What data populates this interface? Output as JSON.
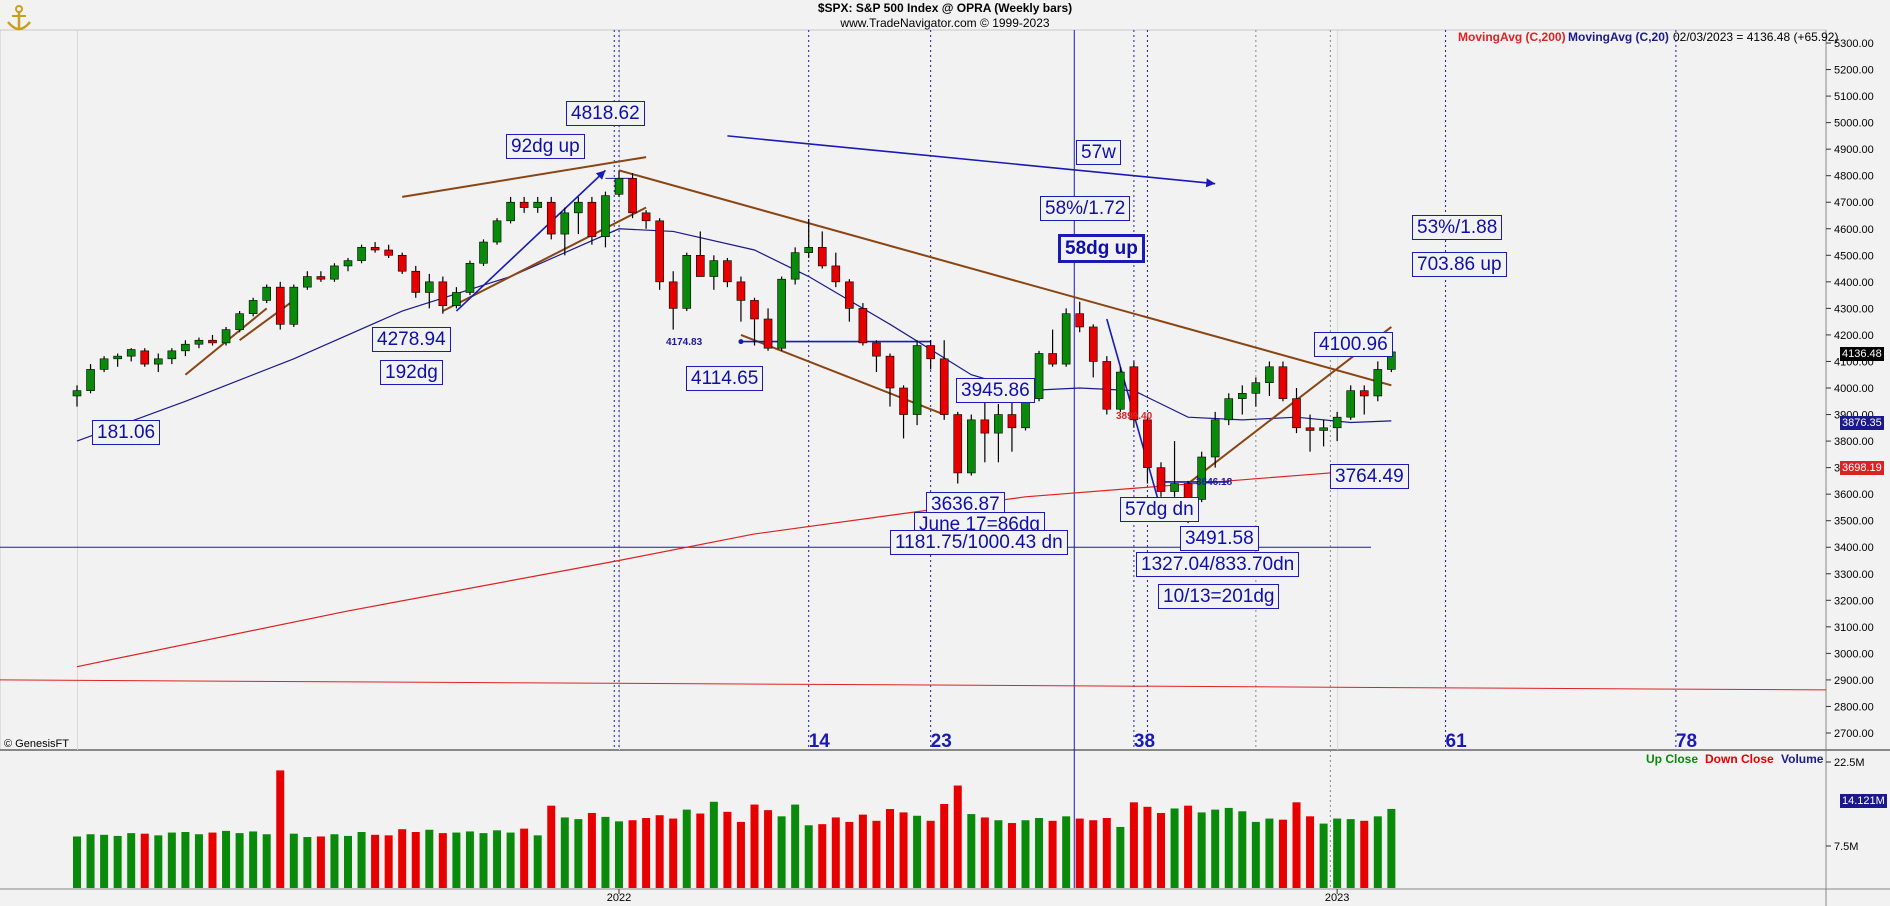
{
  "header": {
    "title": "$SPX:  S&P 500 Index @ OPRA  (Weekly bars)",
    "subtitle": "www.TradeNavigator.com © 1999-2023"
  },
  "legend": {
    "ma200": "MovingAvg (C,200)",
    "ma20": "MovingAvg (C,20)",
    "last_bar": "02/03/2023 = 4136.48 (+65.92)",
    "up_close": "Up Close",
    "down_close": "Down Close",
    "volume": "Volume"
  },
  "copyright": "© GenesisFT",
  "price_tags": {
    "last": "4136.48",
    "ma20": "3876.35",
    "ma200": "3698.19",
    "vol": "14.121M"
  },
  "annotations": {
    "a4818": "4818.62",
    "a92dg": "92dg up",
    "a4278": "4278.94",
    "a192dg": "192dg",
    "a181": "181.06",
    "a4114": "4114.65",
    "a4174": "4174.83",
    "a3945": "3945.86",
    "a3636": "3636.87",
    "june17": "June 17=86dg",
    "a1181": "1181.75/1000.43 dn",
    "a57w": "57w",
    "a58pct": "58%/1.72",
    "a58dg": "58dg up",
    "a3899": "3899.40",
    "a3646": "3646.18",
    "a57dgdn": "57dg dn",
    "a3491": "3491.58",
    "a1327": "1327.04/833.70dn",
    "oct13": "10/13=201dg",
    "a4100": "4100.96",
    "a3764": "3764.49",
    "a53pct": "53%/1.88",
    "a703": "703.86 up"
  },
  "colors": {
    "up": "#0a8a0a",
    "down": "#e60000",
    "annotation": "#1a1ab4",
    "ma200": "#dd2222",
    "ma20": "#1a1a8a",
    "trendline": "#8b4513",
    "background": "#f2f2f2"
  },
  "chart_data": {
    "type": "candlestick",
    "title": "$SPX:  S&P 500 Index @ OPRA  (Weekly bars)",
    "y_axis": {
      "min": 2700,
      "max": 5300,
      "step": 100,
      "ticks": [
        "5300.00",
        "5200.00",
        "5100.00",
        "5000.00",
        "4900.00",
        "4800.00",
        "4700.00",
        "4600.00",
        "4500.00",
        "4400.00",
        "4300.00",
        "4200.00",
        "4100.00",
        "4000.00",
        "3900.00",
        "3800.00",
        "3700.00",
        "3600.00",
        "3500.00",
        "3400.00",
        "3300.00",
        "3200.00",
        "3100.00",
        "3000.00",
        "2900.00",
        "2800.00",
        "2700.00"
      ]
    },
    "volume_axis": {
      "min": 0,
      "max": 22.5,
      "unit": "M",
      "ticks": [
        "22.5M",
        "7.5M"
      ]
    },
    "x_axis": {
      "labels": [
        {
          "bar": 0,
          "text": "2022"
        },
        {
          "bar": 53,
          "text": "2023"
        }
      ]
    },
    "cycle_counts": [
      {
        "bar": 0,
        "text": "",
        "label_shown": false
      },
      {
        "bar": 14,
        "text": "14"
      },
      {
        "bar": 23,
        "text": "23"
      },
      {
        "bar": 38,
        "text": "38"
      },
      {
        "bar": 61,
        "text": "61"
      },
      {
        "bar": 78,
        "text": "78"
      }
    ],
    "bars": [
      {
        "w": -40,
        "o": 3970,
        "h": 4010,
        "l": 3930,
        "c": 3990,
        "v": 9.2
      },
      {
        "w": -39,
        "o": 3990,
        "h": 4090,
        "l": 3980,
        "c": 4070,
        "v": 9.6
      },
      {
        "w": -38,
        "o": 4070,
        "h": 4120,
        "l": 4060,
        "c": 4110,
        "v": 9.5
      },
      {
        "w": -37,
        "o": 4110,
        "h": 4130,
        "l": 4080,
        "c": 4120,
        "v": 9.3
      },
      {
        "w": -36,
        "o": 4120,
        "h": 4150,
        "l": 4100,
        "c": 4145,
        "v": 9.8
      },
      {
        "w": -35,
        "o": 4140,
        "h": 4150,
        "l": 4080,
        "c": 4090,
        "v": 9.7
      },
      {
        "w": -34,
        "o": 4090,
        "h": 4130,
        "l": 4060,
        "c": 4110,
        "v": 9.4
      },
      {
        "w": -33,
        "o": 4110,
        "h": 4150,
        "l": 4090,
        "c": 4140,
        "v": 9.9
      },
      {
        "w": -32,
        "o": 4140,
        "h": 4180,
        "l": 4120,
        "c": 4165,
        "v": 10.0
      },
      {
        "w": -31,
        "o": 4165,
        "h": 4190,
        "l": 4150,
        "c": 4180,
        "v": 9.6
      },
      {
        "w": -30,
        "o": 4180,
        "h": 4200,
        "l": 4160,
        "c": 4170,
        "v": 9.9
      },
      {
        "w": -29,
        "o": 4170,
        "h": 4230,
        "l": 4160,
        "c": 4220,
        "v": 10.2
      },
      {
        "w": -28,
        "o": 4220,
        "h": 4290,
        "l": 4210,
        "c": 4280,
        "v": 9.8
      },
      {
        "w": -27,
        "o": 4280,
        "h": 4340,
        "l": 4270,
        "c": 4330,
        "v": 10.1
      },
      {
        "w": -26,
        "o": 4330,
        "h": 4390,
        "l": 4320,
        "c": 4380,
        "v": 9.6
      },
      {
        "w": -25,
        "o": 4380,
        "h": 4400,
        "l": 4220,
        "c": 4240,
        "v": 21.0
      },
      {
        "w": -24,
        "o": 4240,
        "h": 4390,
        "l": 4230,
        "c": 4380,
        "v": 9.7
      },
      {
        "w": -23,
        "o": 4380,
        "h": 4440,
        "l": 4370,
        "c": 4420,
        "v": 9.1
      },
      {
        "w": -22,
        "o": 4420,
        "h": 4440,
        "l": 4400,
        "c": 4410,
        "v": 9.2
      },
      {
        "w": -21,
        "o": 4410,
        "h": 4470,
        "l": 4400,
        "c": 4460,
        "v": 9.6
      },
      {
        "w": -20,
        "o": 4460,
        "h": 4490,
        "l": 4440,
        "c": 4480,
        "v": 9.3
      },
      {
        "w": -19,
        "o": 4480,
        "h": 4540,
        "l": 4470,
        "c": 4530,
        "v": 10.0
      },
      {
        "w": -18,
        "o": 4530,
        "h": 4550,
        "l": 4510,
        "c": 4520,
        "v": 9.5
      },
      {
        "w": -17,
        "o": 4520,
        "h": 4540,
        "l": 4490,
        "c": 4500,
        "v": 9.4
      },
      {
        "w": -16,
        "o": 4500,
        "h": 4510,
        "l": 4430,
        "c": 4440,
        "v": 10.5
      },
      {
        "w": -15,
        "o": 4440,
        "h": 4460,
        "l": 4340,
        "c": 4360,
        "v": 10.0
      },
      {
        "w": -14,
        "o": 4360,
        "h": 4430,
        "l": 4300,
        "c": 4400,
        "v": 10.4
      },
      {
        "w": -13,
        "o": 4400,
        "h": 4420,
        "l": 4280,
        "c": 4310,
        "v": 9.8
      },
      {
        "w": -12,
        "o": 4310,
        "h": 4380,
        "l": 4300,
        "c": 4360,
        "v": 9.9
      },
      {
        "w": -11,
        "o": 4360,
        "h": 4480,
        "l": 4350,
        "c": 4470,
        "v": 10.1
      },
      {
        "w": -10,
        "o": 4470,
        "h": 4560,
        "l": 4460,
        "c": 4550,
        "v": 9.8
      },
      {
        "w": -9,
        "o": 4550,
        "h": 4640,
        "l": 4540,
        "c": 4630,
        "v": 10.3
      },
      {
        "w": -8,
        "o": 4630,
        "h": 4720,
        "l": 4620,
        "c": 4700,
        "v": 9.9
      },
      {
        "w": -7,
        "o": 4700,
        "h": 4720,
        "l": 4660,
        "c": 4680,
        "v": 10.6
      },
      {
        "w": -6,
        "o": 4680,
        "h": 4720,
        "l": 4660,
        "c": 4700,
        "v": 9.4
      },
      {
        "w": -5,
        "o": 4700,
        "h": 4720,
        "l": 4560,
        "c": 4580,
        "v": 14.7
      },
      {
        "w": -4,
        "o": 4580,
        "h": 4680,
        "l": 4500,
        "c": 4660,
        "v": 12.6
      },
      {
        "w": -3,
        "o": 4660,
        "h": 4720,
        "l": 4580,
        "c": 4700,
        "v": 12.3
      },
      {
        "w": -2,
        "o": 4700,
        "h": 4720,
        "l": 4540,
        "c": 4570,
        "v": 13.4
      },
      {
        "w": -1,
        "o": 4570,
        "h": 4740,
        "l": 4530,
        "c": 4725,
        "v": 12.7
      },
      {
        "w": 0,
        "o": 4730,
        "h": 4818,
        "l": 4720,
        "c": 4790,
        "v": 11.9
      },
      {
        "w": 1,
        "o": 4790,
        "h": 4810,
        "l": 4640,
        "c": 4660,
        "v": 12.1
      },
      {
        "w": 2,
        "o": 4660,
        "h": 4670,
        "l": 4600,
        "c": 4630,
        "v": 12.5
      },
      {
        "w": 3,
        "o": 4630,
        "h": 4640,
        "l": 4370,
        "c": 4400,
        "v": 13.0
      },
      {
        "w": 4,
        "o": 4400,
        "h": 4440,
        "l": 4220,
        "c": 4300,
        "v": 12.4
      },
      {
        "w": 5,
        "o": 4300,
        "h": 4510,
        "l": 4290,
        "c": 4500,
        "v": 14.0
      },
      {
        "w": 6,
        "o": 4500,
        "h": 4590,
        "l": 4440,
        "c": 4420,
        "v": 13.3
      },
      {
        "w": 7,
        "o": 4420,
        "h": 4500,
        "l": 4370,
        "c": 4480,
        "v": 15.4
      },
      {
        "w": 8,
        "o": 4480,
        "h": 4490,
        "l": 4380,
        "c": 4400,
        "v": 13.6
      },
      {
        "w": 9,
        "o": 4400,
        "h": 4420,
        "l": 4250,
        "c": 4330,
        "v": 11.8
      },
      {
        "w": 10,
        "o": 4330,
        "h": 4340,
        "l": 4160,
        "c": 4260,
        "v": 14.9
      },
      {
        "w": 11,
        "o": 4260,
        "h": 4300,
        "l": 4140,
        "c": 4150,
        "v": 13.9
      },
      {
        "w": 12,
        "o": 4150,
        "h": 4420,
        "l": 4140,
        "c": 4410,
        "v": 12.8
      },
      {
        "w": 13,
        "o": 4410,
        "h": 4530,
        "l": 4390,
        "c": 4510,
        "v": 14.9
      },
      {
        "w": 14,
        "o": 4510,
        "h": 4637,
        "l": 4490,
        "c": 4530,
        "v": 11.2
      },
      {
        "w": 15,
        "o": 4530,
        "h": 4590,
        "l": 4450,
        "c": 4460,
        "v": 11.4
      },
      {
        "w": 16,
        "o": 4460,
        "h": 4510,
        "l": 4380,
        "c": 4400,
        "v": 12.6
      },
      {
        "w": 17,
        "o": 4400,
        "h": 4410,
        "l": 4250,
        "c": 4300,
        "v": 11.8
      },
      {
        "w": 18,
        "o": 4300,
        "h": 4320,
        "l": 4160,
        "c": 4170,
        "v": 13.1
      },
      {
        "w": 19,
        "o": 4170,
        "h": 4180,
        "l": 4060,
        "c": 4120,
        "v": 12.0
      },
      {
        "w": 20,
        "o": 4120,
        "h": 4130,
        "l": 3930,
        "c": 4000,
        "v": 14.1
      },
      {
        "w": 21,
        "o": 4000,
        "h": 4010,
        "l": 3810,
        "c": 3900,
        "v": 13.5
      },
      {
        "w": 22,
        "o": 3900,
        "h": 4180,
        "l": 3860,
        "c": 4160,
        "v": 12.9
      },
      {
        "w": 23,
        "o": 4160,
        "h": 4180,
        "l": 4070,
        "c": 4110,
        "v": 12.0
      },
      {
        "w": 24,
        "o": 4110,
        "h": 4180,
        "l": 3880,
        "c": 3900,
        "v": 15.0
      },
      {
        "w": 25,
        "o": 3900,
        "h": 3910,
        "l": 3640,
        "c": 3680,
        "v": 18.3
      },
      {
        "w": 26,
        "o": 3680,
        "h": 3900,
        "l": 3670,
        "c": 3880,
        "v": 13.2
      },
      {
        "w": 27,
        "o": 3880,
        "h": 3950,
        "l": 3720,
        "c": 3830,
        "v": 12.6
      },
      {
        "w": 28,
        "o": 3830,
        "h": 3940,
        "l": 3720,
        "c": 3900,
        "v": 12.1
      },
      {
        "w": 29,
        "o": 3900,
        "h": 3950,
        "l": 3760,
        "c": 3850,
        "v": 11.6
      },
      {
        "w": 30,
        "o": 3850,
        "h": 4000,
        "l": 3840,
        "c": 3960,
        "v": 12.1
      },
      {
        "w": 31,
        "o": 3960,
        "h": 4140,
        "l": 3950,
        "c": 4130,
        "v": 12.5
      },
      {
        "w": 32,
        "o": 4130,
        "h": 4220,
        "l": 4080,
        "c": 4090,
        "v": 12.0
      },
      {
        "w": 33,
        "o": 4090,
        "h": 4300,
        "l": 4080,
        "c": 4280,
        "v": 12.8
      },
      {
        "w": 34,
        "o": 4280,
        "h": 4325,
        "l": 4210,
        "c": 4230,
        "v": 12.4
      },
      {
        "w": 35,
        "o": 4230,
        "h": 4240,
        "l": 4040,
        "c": 4100,
        "v": 12.1
      },
      {
        "w": 36,
        "o": 4100,
        "h": 4120,
        "l": 3900,
        "c": 3920,
        "v": 12.5
      },
      {
        "w": 37,
        "o": 3920,
        "h": 4080,
        "l": 3910,
        "c": 4060,
        "v": 10.9
      },
      {
        "w": 38,
        "o": 4080,
        "h": 4100,
        "l": 3850,
        "c": 3880,
        "v": 15.3
      },
      {
        "w": 39,
        "o": 3880,
        "h": 3890,
        "l": 3640,
        "c": 3700,
        "v": 14.5
      },
      {
        "w": 40,
        "o": 3700,
        "h": 3720,
        "l": 3590,
        "c": 3610,
        "v": 13.4
      },
      {
        "w": 41,
        "o": 3610,
        "h": 3800,
        "l": 3590,
        "c": 3640,
        "v": 14.2
      },
      {
        "w": 42,
        "o": 3640,
        "h": 3650,
        "l": 3491,
        "c": 3580,
        "v": 14.7
      },
      {
        "w": 43,
        "o": 3580,
        "h": 3760,
        "l": 3570,
        "c": 3740,
        "v": 13.5
      },
      {
        "w": 44,
        "o": 3740,
        "h": 3910,
        "l": 3700,
        "c": 3880,
        "v": 14.0
      },
      {
        "w": 45,
        "o": 3880,
        "h": 3980,
        "l": 3860,
        "c": 3960,
        "v": 14.3
      },
      {
        "w": 46,
        "o": 3960,
        "h": 4010,
        "l": 3900,
        "c": 3980,
        "v": 13.7
      },
      {
        "w": 47,
        "o": 3980,
        "h": 4040,
        "l": 3930,
        "c": 4020,
        "v": 11.8
      },
      {
        "w": 48,
        "o": 4020,
        "h": 4100,
        "l": 3970,
        "c": 4080,
        "v": 12.4
      },
      {
        "w": 49,
        "o": 4080,
        "h": 4100,
        "l": 3950,
        "c": 3960,
        "v": 12.2
      },
      {
        "w": 50,
        "o": 3960,
        "h": 4000,
        "l": 3830,
        "c": 3850,
        "v": 15.3
      },
      {
        "w": 51,
        "o": 3850,
        "h": 3900,
        "l": 3760,
        "c": 3840,
        "v": 12.8
      },
      {
        "w": 52,
        "o": 3840,
        "h": 3880,
        "l": 3780,
        "c": 3850,
        "v": 11.5
      },
      {
        "w": 53,
        "o": 3850,
        "h": 3910,
        "l": 3800,
        "c": 3890,
        "v": 12.4
      },
      {
        "w": 54,
        "o": 3890,
        "h": 4010,
        "l": 3880,
        "c": 3990,
        "v": 12.3
      },
      {
        "w": 55,
        "o": 3990,
        "h": 4010,
        "l": 3900,
        "c": 3970,
        "v": 12.0
      },
      {
        "w": 56,
        "o": 3970,
        "h": 4100,
        "l": 3950,
        "c": 4070,
        "v": 12.8
      },
      {
        "w": 57,
        "o": 4070,
        "h": 4190,
        "l": 4060,
        "c": 4136,
        "v": 14.12
      }
    ],
    "moving_averages": {
      "ma20": {
        "name": "MovingAvg (C,20)",
        "points": [
          [
            -40,
            3800
          ],
          [
            -32,
            3950
          ],
          [
            -24,
            4110
          ],
          [
            -16,
            4290
          ],
          [
            -8,
            4420
          ],
          [
            0,
            4600
          ],
          [
            4,
            4590
          ],
          [
            10,
            4520
          ],
          [
            14,
            4420
          ],
          [
            20,
            4240
          ],
          [
            26,
            4050
          ],
          [
            30,
            3990
          ],
          [
            34,
            4000
          ],
          [
            38,
            3990
          ],
          [
            42,
            3890
          ],
          [
            46,
            3880
          ],
          [
            50,
            3890
          ],
          [
            54,
            3870
          ],
          [
            57,
            3876
          ]
        ]
      },
      "ma200": {
        "name": "MovingAvg (C,200)",
        "points": [
          [
            -40,
            2950
          ],
          [
            -20,
            3160
          ],
          [
            0,
            3350
          ],
          [
            10,
            3450
          ],
          [
            20,
            3520
          ],
          [
            30,
            3590
          ],
          [
            40,
            3630
          ],
          [
            50,
            3670
          ],
          [
            57,
            3698
          ]
        ]
      }
    },
    "reference_lines": {
      "hline_3400": 3400,
      "hline_2900": 2900
    },
    "trendlines": [
      {
        "type": "brown",
        "from": [
          -32,
          4050
        ],
        "to": [
          -26,
          4300
        ]
      },
      {
        "type": "brown",
        "from": [
          -28,
          4180
        ],
        "to": [
          -24,
          4330
        ]
      },
      {
        "type": "brown",
        "from": [
          -13,
          4290
        ],
        "to": [
          2,
          4680
        ]
      },
      {
        "type": "brown",
        "from": [
          -16,
          4720
        ],
        "to": [
          2,
          4870
        ]
      },
      {
        "type": "brown",
        "from": [
          0,
          4820
        ],
        "to": [
          57,
          4010
        ]
      },
      {
        "type": "brown",
        "from": [
          9,
          4200
        ],
        "to": [
          24,
          3900
        ]
      },
      {
        "type": "brown",
        "from": [
          42,
          3640
        ],
        "to": [
          57,
          4230
        ]
      },
      {
        "type": "blue",
        "from": [
          -12,
          4290
        ],
        "to": [
          -1,
          4820
        ]
      },
      {
        "type": "blue",
        "from": [
          8,
          4950
        ],
        "to": [
          44,
          4770
        ]
      },
      {
        "type": "blue",
        "from": [
          36,
          4260
        ],
        "to": [
          40,
          3540
        ]
      },
      {
        "type": "blue",
        "from": [
          9,
          4174.83
        ],
        "to": [
          23,
          4174.83
        ]
      },
      {
        "type": "blue",
        "from": [
          40,
          3646
        ],
        "to": [
          45,
          3646
        ]
      }
    ]
  }
}
